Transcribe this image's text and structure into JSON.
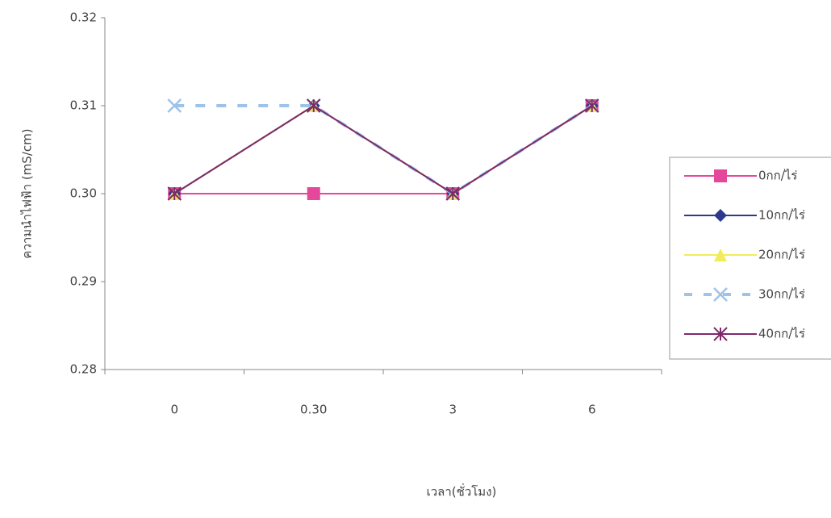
{
  "chart_data": {
    "type": "line",
    "x_label": "เวลา(ชั่วโมง)",
    "y_label": "ความนำไฟฟ้า (mS/cm)",
    "categories": [
      "0",
      "0.30",
      "3",
      "6"
    ],
    "ylim": [
      0.28,
      0.32
    ],
    "yticks": [
      0.28,
      0.29,
      {
        "value": 0.3,
        "label": "0.30"
      },
      0.31,
      0.32
    ],
    "legend": "right",
    "series": [
      {
        "name": "0กก/ไร่",
        "color": "#e5479a",
        "marker": "square",
        "dashed": false,
        "values": [
          0.3,
          0.3,
          0.3,
          0.31
        ]
      },
      {
        "name": "10กก/ไร่",
        "color": "#2b3a8f",
        "marker": "diamond",
        "dashed": false,
        "values": [
          0.3,
          0.31,
          0.3,
          0.31
        ]
      },
      {
        "name": "20กก/ไร่",
        "color": "#f2ec5a",
        "marker": "triangle",
        "dashed": false,
        "values": [
          0.3,
          0.31,
          0.3,
          0.31
        ]
      },
      {
        "name": "30กก/ไร่",
        "color": "#9ec3ea",
        "marker": "x",
        "dashed": true,
        "values": [
          0.31,
          0.31,
          0.3,
          0.31
        ]
      },
      {
        "name": "40กก/ไร่",
        "color": "#7e2a6a",
        "marker": "star",
        "dashed": false,
        "values": [
          0.3,
          0.31,
          0.3,
          0.31
        ]
      }
    ]
  }
}
